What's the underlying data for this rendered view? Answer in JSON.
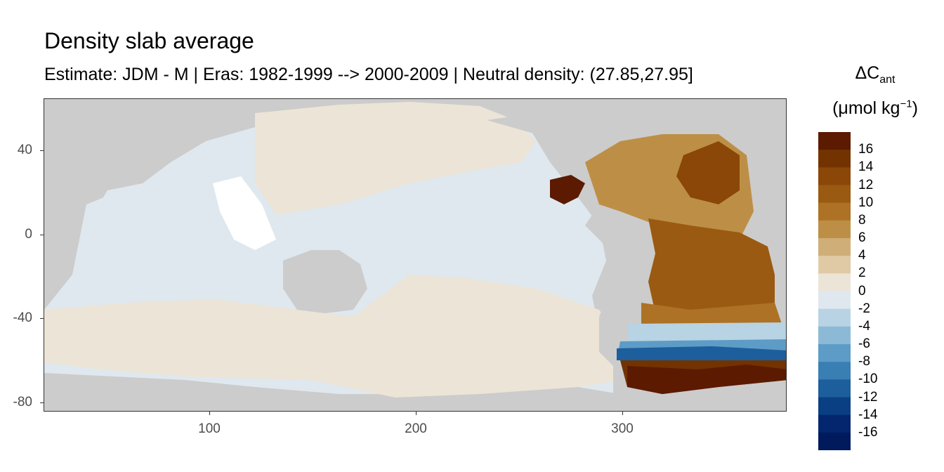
{
  "title": "Density slab average",
  "subtitle": "Estimate: JDM - M | Eras: 1982-1999 --> 2000-2009 | Neutral density: (27.85,27.95]",
  "legend": {
    "title_main": "ΔC",
    "title_sub": "ant",
    "unit_main": "(μmol kg",
    "unit_sup": "−1",
    "unit_end": ")",
    "labels": [
      "16",
      "14",
      "12",
      "10",
      "8",
      "6",
      "4",
      "2",
      "0",
      "-2",
      "-4",
      "-6",
      "-8",
      "-10",
      "-12",
      "-14",
      "-16"
    ],
    "colors": [
      "#5c1a00",
      "#733300",
      "#8a4708",
      "#9b5a12",
      "#ad7225",
      "#bd8f46",
      "#cfae78",
      "#e0caa5",
      "#ece4d6",
      "#dfe8ee",
      "#b8d3e3",
      "#8cbad6",
      "#5d9cc6",
      "#3a7fb4",
      "#1d5e9c",
      "#0b3f84",
      "#03266f",
      "#001a5c"
    ]
  },
  "axes": {
    "y_ticks": [
      "40",
      "0",
      "-40",
      "-80"
    ],
    "x_ticks": [
      "100",
      "200",
      "300"
    ],
    "xlim": [
      20,
      380
    ],
    "ylim": [
      -85,
      65
    ]
  },
  "map": {
    "land_color": "#cccccc",
    "missing_color": "#ffffff"
  }
}
